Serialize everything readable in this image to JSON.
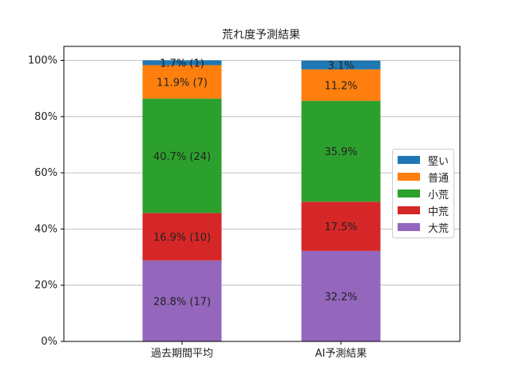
{
  "chart_data": {
    "type": "bar",
    "stacked": true,
    "title": "荒れ度予測結果",
    "xlabel": "",
    "ylabel": "",
    "ylim": [
      0,
      100
    ],
    "y_tick_labels": [
      "0%",
      "20%",
      "40%",
      "60%",
      "80%",
      "100%"
    ],
    "grid": "horizontal",
    "legend_position": "right",
    "categories": [
      "過去期間平均",
      "AI予測結果"
    ],
    "series": [
      {
        "name": "大荒",
        "color": "#9467bd",
        "values": [
          28.8,
          32.2
        ],
        "labels": [
          "28.8% (17)",
          "32.2%"
        ]
      },
      {
        "name": "中荒",
        "color": "#d62728",
        "values": [
          16.9,
          17.5
        ],
        "labels": [
          "16.9% (10)",
          "17.5%"
        ]
      },
      {
        "name": "小荒",
        "color": "#2ca02c",
        "values": [
          40.7,
          35.9
        ],
        "labels": [
          "40.7% (24)",
          "35.9%"
        ]
      },
      {
        "name": "普通",
        "color": "#ff7f0e",
        "values": [
          11.9,
          11.2
        ],
        "labels": [
          "11.9% (7)",
          "11.2%"
        ]
      },
      {
        "name": "堅い",
        "color": "#1f77b4",
        "values": [
          1.7,
          3.1
        ],
        "labels": [
          "1.7% (1)",
          "3.1%"
        ]
      }
    ],
    "legend_order": [
      "堅い",
      "普通",
      "小荒",
      "中荒",
      "大荒"
    ]
  }
}
